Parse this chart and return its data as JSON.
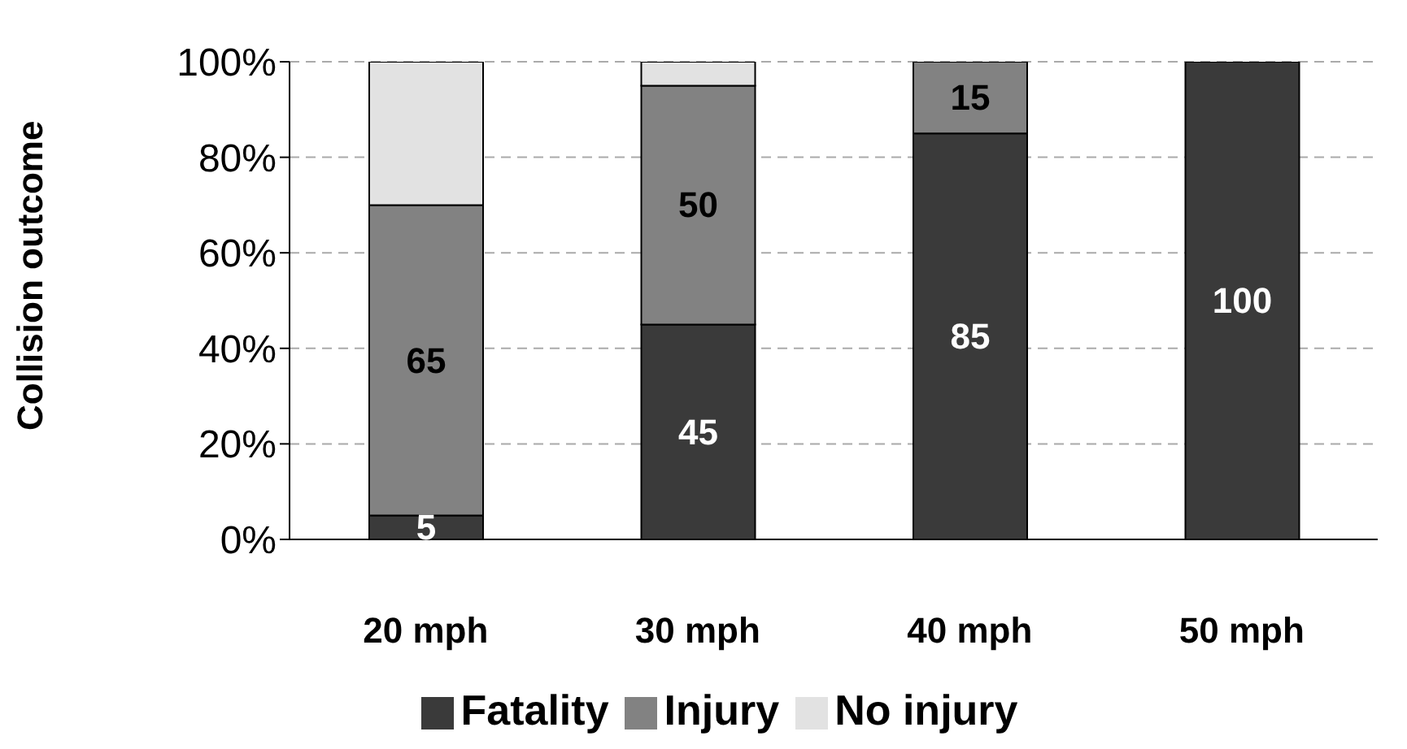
{
  "chart_data": {
    "type": "bar",
    "stacked": true,
    "ylabel": "Collision outcome",
    "categories": [
      "20 mph",
      "30 mph",
      "40 mph",
      "50 mph"
    ],
    "series": [
      {
        "name": "Fatality",
        "color": "#3a3a3a",
        "values": [
          5,
          45,
          85,
          100
        ],
        "value_labels": [
          "5",
          "45",
          "85",
          "100"
        ]
      },
      {
        "name": "Injury",
        "color": "#828282",
        "values": [
          65,
          50,
          15,
          0
        ],
        "value_labels": [
          "65",
          "50",
          "15",
          null
        ]
      },
      {
        "name": "No injury",
        "color": "#e2e2e2",
        "values": [
          30,
          5,
          0,
          0
        ]
      }
    ],
    "ylim": [
      0,
      100
    ],
    "yticks": [
      {
        "value": 0,
        "label": "0%"
      },
      {
        "value": 20,
        "label": "20%"
      },
      {
        "value": 40,
        "label": "40%"
      },
      {
        "value": 60,
        "label": "60%"
      },
      {
        "value": 80,
        "label": "80%"
      },
      {
        "value": 100,
        "label": "100%"
      }
    ],
    "grid": "y",
    "legend": "bottom"
  }
}
